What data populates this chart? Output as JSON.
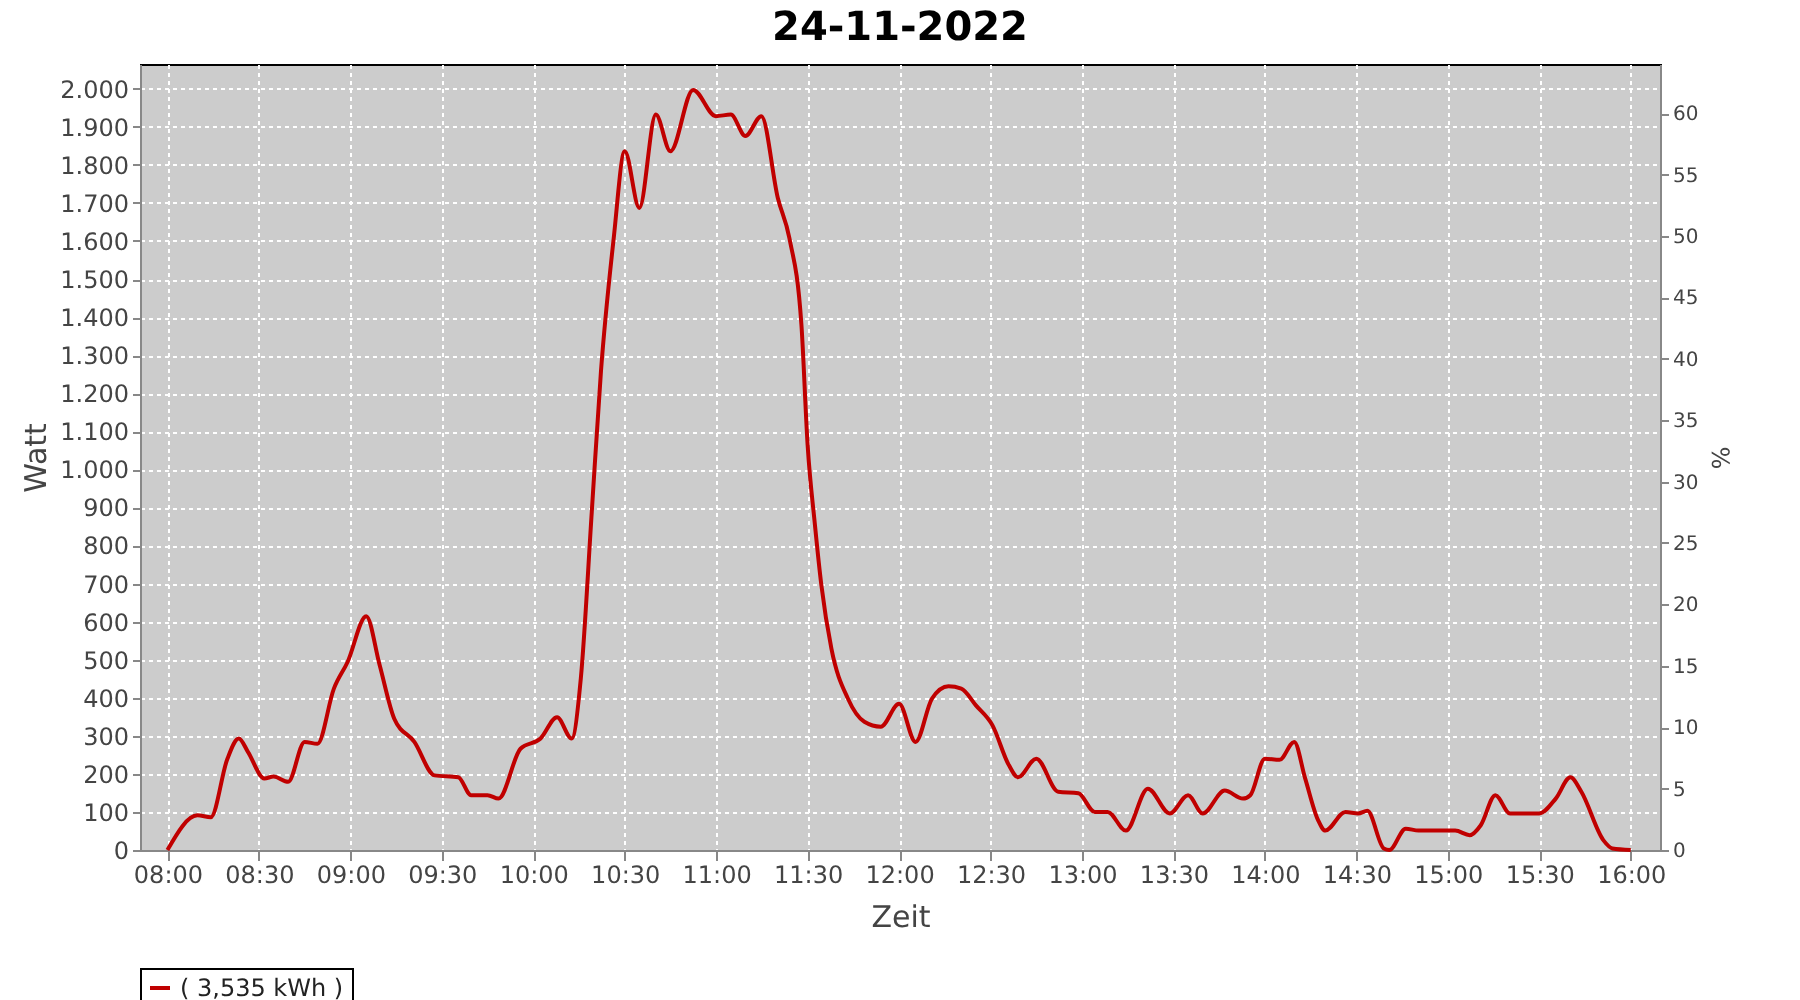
{
  "chart_data": {
    "type": "line",
    "title": "24-11-2022",
    "xlabel": "Zeit",
    "ylabel": "Watt",
    "y2label": "%",
    "xlim": [
      7.85,
      16.16
    ],
    "xticks": [
      {
        "value": 8,
        "label": "08:00"
      },
      {
        "value": 8.5,
        "label": "08:30"
      },
      {
        "value": 9,
        "label": "09:00"
      },
      {
        "value": 9.5,
        "label": "09:30"
      },
      {
        "value": 10,
        "label": "10:00"
      },
      {
        "value": 10.5,
        "label": "10:30"
      },
      {
        "value": 11,
        "label": "11:00"
      },
      {
        "value": 11.5,
        "label": "11:30"
      },
      {
        "value": 12,
        "label": "12:00"
      },
      {
        "value": 12.5,
        "label": "12:30"
      },
      {
        "value": 13,
        "label": "13:00"
      },
      {
        "value": 13.5,
        "label": "13:30"
      },
      {
        "value": 14,
        "label": "14:00"
      },
      {
        "value": 14.5,
        "label": "14:30"
      },
      {
        "value": 15,
        "label": "15:00"
      },
      {
        "value": 15.5,
        "label": "15:30"
      },
      {
        "value": 16,
        "label": "16:00"
      }
    ],
    "ylim": [
      0,
      2065
    ],
    "yticks": [
      0,
      100,
      200,
      300,
      400,
      500,
      600,
      700,
      800,
      900,
      {
        "value": 1000,
        "label": "1.000"
      },
      {
        "value": 1100,
        "label": "1.100"
      },
      {
        "value": 1200,
        "label": "1.200"
      },
      {
        "value": 1300,
        "label": "1.300"
      },
      {
        "value": 1400,
        "label": "1.400"
      },
      {
        "value": 1500,
        "label": "1.500"
      },
      {
        "value": 1600,
        "label": "1.600"
      },
      {
        "value": 1700,
        "label": "1.700"
      },
      {
        "value": 1800,
        "label": "1.800"
      },
      {
        "value": 1900,
        "label": "1.900"
      },
      {
        "value": 2000,
        "label": "2.000"
      }
    ],
    "y2lim": [
      0,
      64
    ],
    "y2ticks": [
      0,
      5,
      10,
      15,
      20,
      25,
      30,
      35,
      40,
      45,
      50,
      55,
      60
    ],
    "grid": true,
    "legend": "bottom",
    "line_style": "solid",
    "series": [
      {
        "name": "( 3,535 kWh )",
        "color": "#c00000",
        "x": [
          8.0,
          8.164,
          8.237,
          8.328,
          8.39,
          8.44,
          8.53,
          8.58,
          8.66,
          8.75,
          8.82,
          8.91,
          8.985,
          9.087,
          9.16,
          9.24,
          9.35,
          9.46,
          9.59,
          9.66,
          9.75,
          9.81,
          9.93,
          10.04,
          10.13,
          10.21,
          10.26,
          10.32,
          10.37,
          10.44,
          10.5,
          10.58,
          10.67,
          10.75,
          10.874,
          10.998,
          11.08,
          11.16,
          11.247,
          11.337,
          11.4,
          11.466,
          11.5,
          11.54,
          11.575,
          11.63,
          11.72,
          11.81,
          11.9,
          12.0,
          12.09,
          12.18,
          12.27,
          12.34,
          12.42,
          12.51,
          12.6,
          12.65,
          12.75,
          12.87,
          12.98,
          13.07,
          13.14,
          13.24,
          13.36,
          13.48,
          13.58,
          13.66,
          13.78,
          13.88,
          13.92,
          14.0,
          14.08,
          14.16,
          14.22,
          14.29,
          14.33,
          14.44,
          14.51,
          14.56,
          14.65,
          14.68,
          14.77,
          14.84,
          15.04,
          15.12,
          15.18,
          15.26,
          15.34,
          15.5,
          15.59,
          15.67,
          15.73,
          15.85,
          15.9,
          16.0
        ],
        "values": [
          0,
          91,
          86,
          240,
          293,
          258,
          188,
          193,
          179,
          284,
          279,
          424,
          494,
          614,
          486,
          345,
          284,
          196,
          191,
          144,
          144,
          135,
          266,
          293,
          349,
          293,
          451,
          889,
          1257,
          1608,
          1836,
          1687,
          1932,
          1836,
          1997,
          1928,
          1932,
          1876,
          1928,
          1713,
          1608,
          1380,
          1064,
          854,
          696,
          529,
          398,
          337,
          324,
          384,
          284,
          398,
          430,
          424,
          380,
          328,
          223,
          191,
          240,
          153,
          149,
          100,
          100,
          51,
          161,
          96,
          144,
          96,
          156,
          135,
          144,
          240,
          237,
          284,
          188,
          79,
          51,
          100,
          96,
          103,
          4,
          0,
          56,
          51,
          51,
          39,
          65,
          144,
          96,
          96,
          135,
          191,
          153,
          26,
          4,
          0
        ]
      }
    ]
  }
}
